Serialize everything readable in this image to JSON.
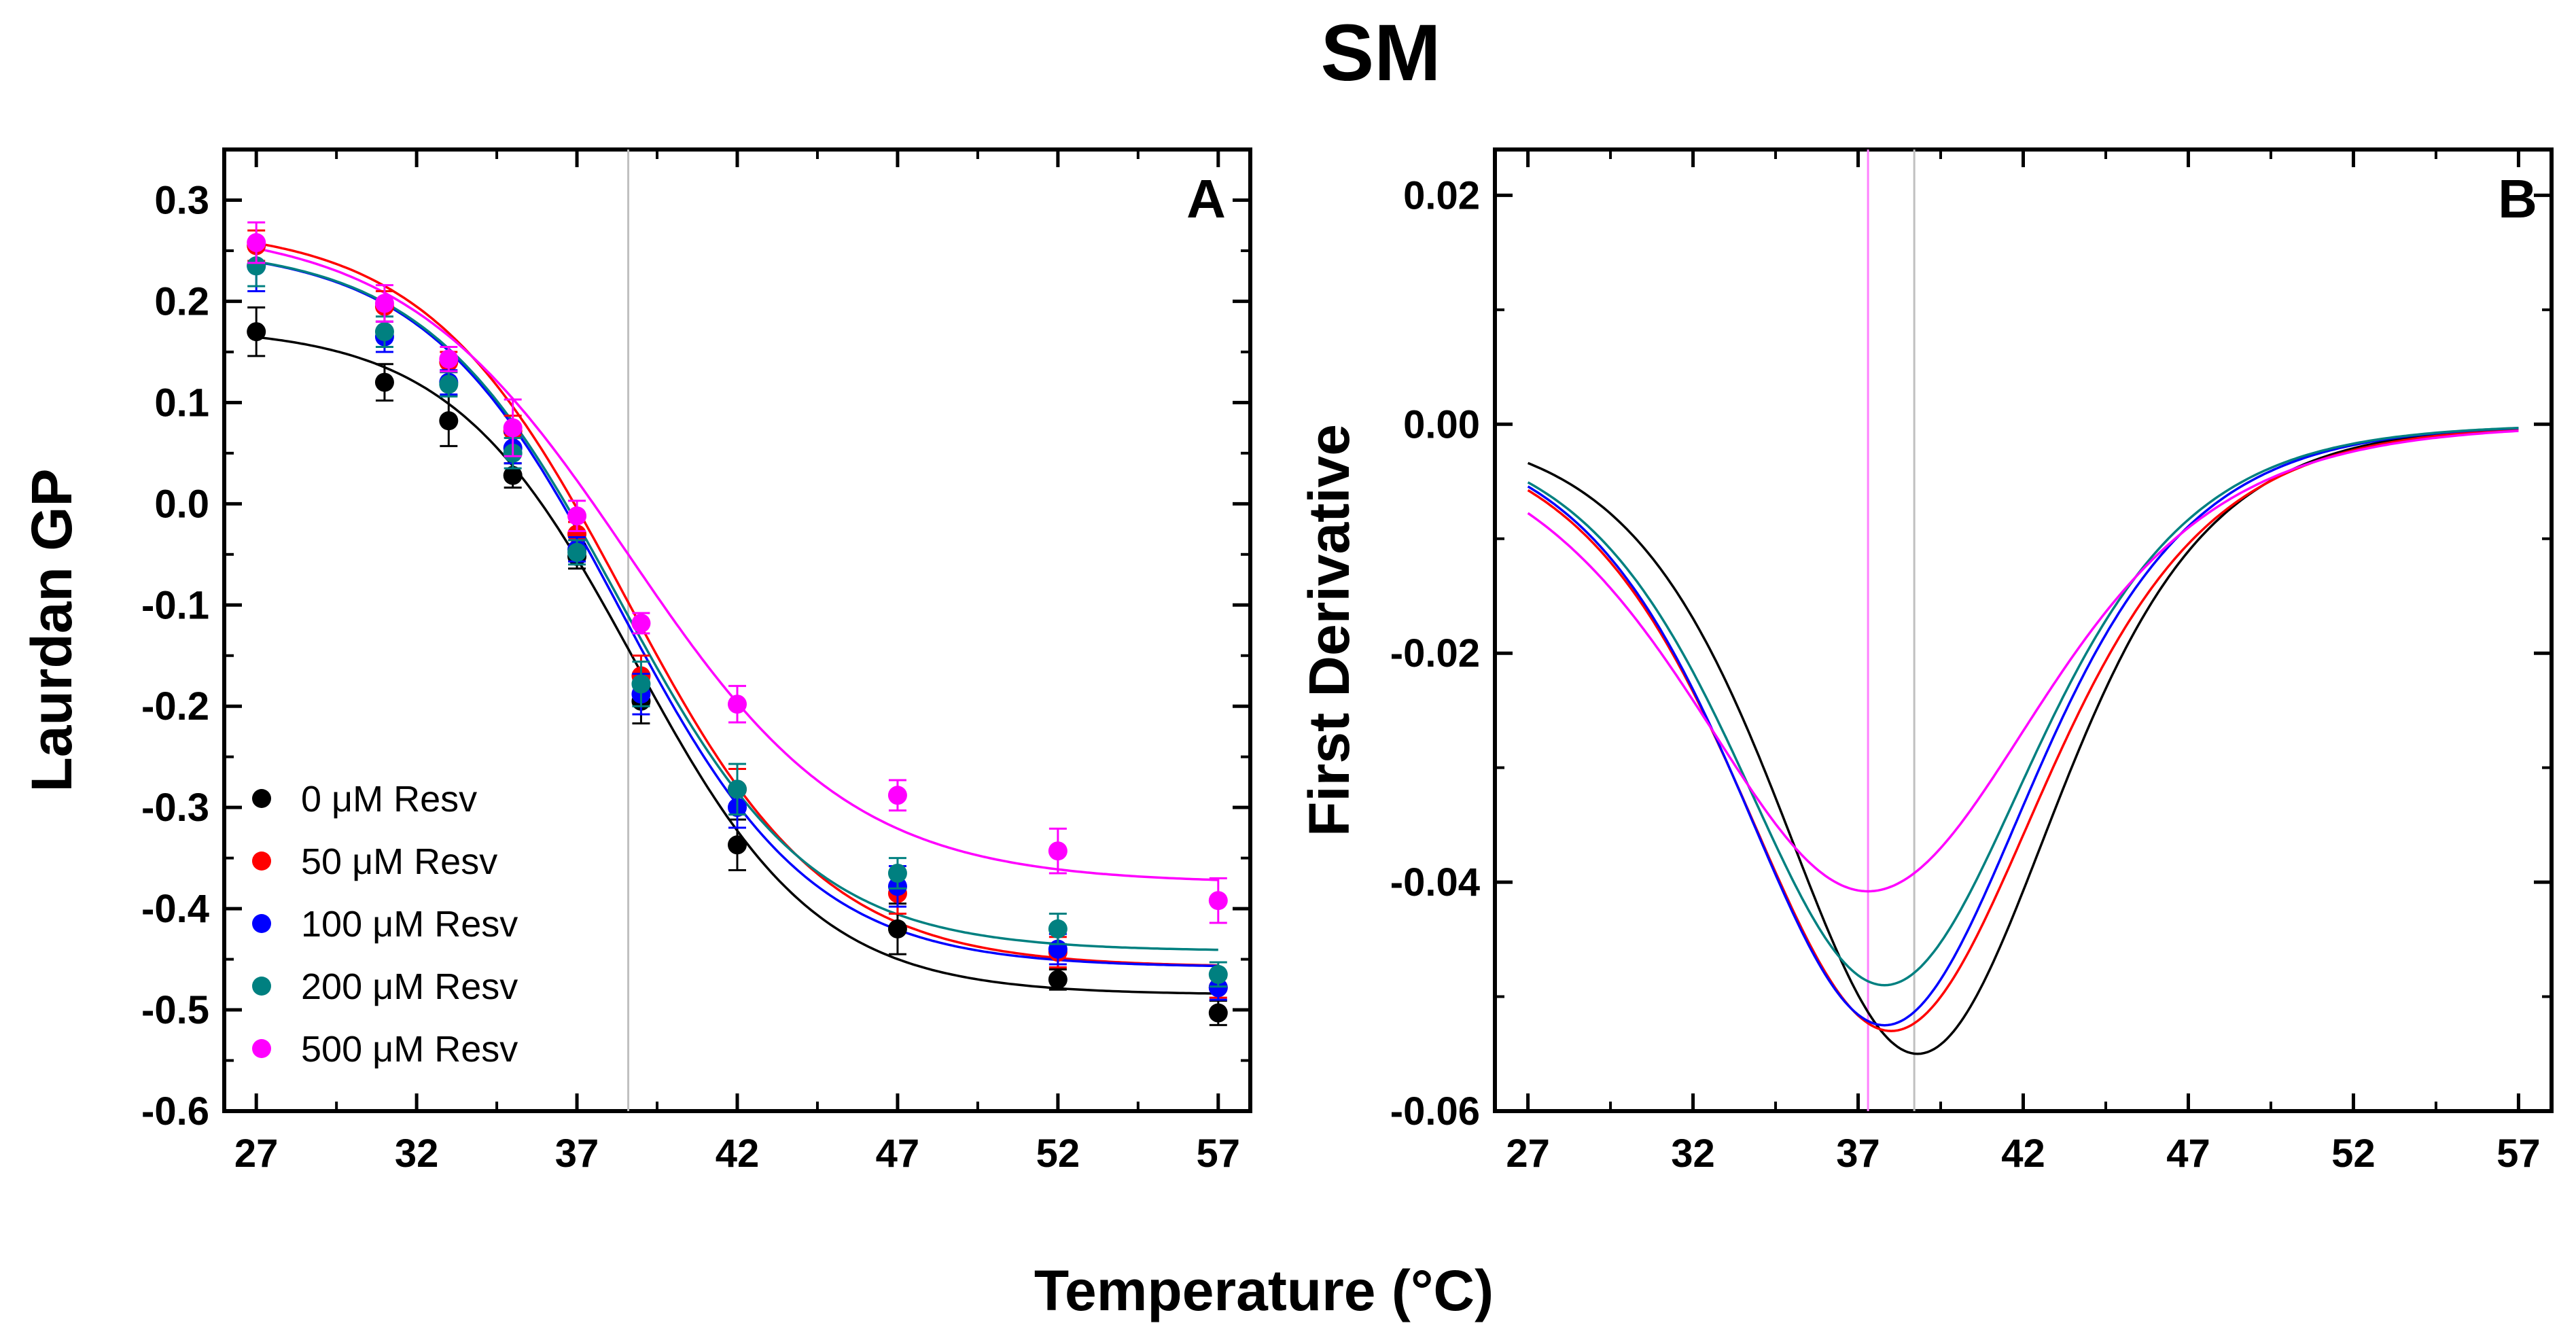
{
  "figure": {
    "title": "SM",
    "shared_xlabel": "Temperature (°C)"
  },
  "chart_data": [
    {
      "type": "scatter",
      "panel": "A",
      "ylabel": "Laurdan GP",
      "xlabel": "Temperature (°C)",
      "xlim": [
        26,
        58
      ],
      "ylim": [
        -0.6,
        0.35
      ],
      "xticks": [
        27,
        32,
        37,
        42,
        47,
        52,
        57
      ],
      "yticks": [
        -0.6,
        -0.5,
        -0.4,
        -0.3,
        -0.2,
        -0.1,
        0.0,
        0.1,
        0.2,
        0.3
      ],
      "ytick_labels": [
        "-0.6",
        "-0.5",
        "-0.4",
        "-0.3",
        "-0.2",
        "-0.1",
        "0.0",
        "0.1",
        "0.2",
        "0.3"
      ],
      "reference_line_x": 38.6,
      "legend_position": "bottom-left",
      "x": [
        27,
        31,
        33,
        35,
        37,
        39,
        42,
        47,
        52,
        57
      ],
      "series": [
        {
          "name": "0 μM Resv",
          "color": "#000000",
          "values": [
            0.17,
            0.12,
            0.082,
            0.028,
            -0.052,
            -0.195,
            -0.337,
            -0.42,
            -0.47,
            -0.503
          ],
          "errors": [
            0.024,
            0.018,
            0.025,
            0.012,
            0.012,
            0.022,
            0.025,
            0.025,
            0.01,
            0.012
          ],
          "fit": {
            "top": 0.175,
            "bottom": -0.485,
            "x0": 38.8,
            "dx": 2.85
          }
        },
        {
          "name": "50 μM Resv",
          "color": "#ff0000",
          "values": [
            0.255,
            0.195,
            0.14,
            0.072,
            -0.03,
            -0.17,
            -0.282,
            -0.385,
            -0.443,
            -0.478
          ],
          "errors": [
            0.015,
            0.015,
            0.01,
            0.015,
            0.012,
            0.02,
            0.02,
            0.02,
            0.015,
            0.01
          ],
          "fit": {
            "top": 0.275,
            "bottom": -0.458,
            "x0": 38.5,
            "dx": 3.1
          }
        },
        {
          "name": "100 μM Resv",
          "color": "#0000ff",
          "values": [
            0.235,
            0.165,
            0.12,
            0.055,
            -0.045,
            -0.188,
            -0.3,
            -0.378,
            -0.44,
            -0.478
          ],
          "errors": [
            0.025,
            0.015,
            0.012,
            0.015,
            0.012,
            0.02,
            0.02,
            0.02,
            0.015,
            0.012
          ],
          "fit": {
            "top": 0.255,
            "bottom": -0.458,
            "x0": 38.3,
            "dx": 3.0
          }
        },
        {
          "name": "200 μM Resv",
          "color": "#008080",
          "values": [
            0.235,
            0.17,
            0.118,
            0.05,
            -0.048,
            -0.178,
            -0.282,
            -0.365,
            -0.42,
            -0.465
          ],
          "errors": [
            0.02,
            0.015,
            0.012,
            0.015,
            0.012,
            0.022,
            0.025,
            0.015,
            0.015,
            0.012
          ],
          "fit": {
            "top": 0.255,
            "bottom": -0.442,
            "x0": 38.3,
            "dx": 3.0
          }
        },
        {
          "name": "500 μM Resv",
          "color": "#ff00ff",
          "values": [
            0.258,
            0.198,
            0.143,
            0.075,
            -0.012,
            -0.118,
            -0.198,
            -0.288,
            -0.343,
            -0.392
          ],
          "errors": [
            0.02,
            0.018,
            0.012,
            0.028,
            0.015,
            0.01,
            0.018,
            0.015,
            0.022,
            0.022
          ],
          "fit": {
            "top": 0.275,
            "bottom": -0.375,
            "x0": 38.6,
            "dx": 3.5
          }
        }
      ]
    },
    {
      "type": "line",
      "panel": "B",
      "ylabel": "First Derivative",
      "xlabel": "Temperature (°C)",
      "xlim": [
        26,
        58
      ],
      "ylim": [
        -0.06,
        0.024
      ],
      "xticks": [
        27,
        32,
        37,
        42,
        47,
        52,
        57
      ],
      "yticks": [
        -0.06,
        -0.04,
        -0.02,
        0.0,
        0.02
      ],
      "ytick_labels": [
        "-0.06",
        "-0.04",
        "-0.02",
        "0.00",
        "0.02"
      ],
      "reference_lines_x": [
        {
          "x": 37.3,
          "color": "#ff80ff"
        },
        {
          "x": 38.7,
          "color": "#c0c0c0"
        }
      ],
      "x_range": [
        27,
        57
      ],
      "series": [
        {
          "name": "0 μM Resv",
          "color": "#000000",
          "minimum": {
            "x": 38.8,
            "y": -0.055
          }
        },
        {
          "name": "50 μM Resv",
          "color": "#ff0000",
          "minimum": {
            "x": 38.0,
            "y": -0.053
          }
        },
        {
          "name": "100 μM Resv",
          "color": "#0000ff",
          "minimum": {
            "x": 37.8,
            "y": -0.0525
          }
        },
        {
          "name": "200 μM Resv",
          "color": "#008080",
          "minimum": {
            "x": 37.8,
            "y": -0.049
          }
        },
        {
          "name": "500 μM Resv",
          "color": "#ff00ff",
          "minimum": {
            "x": 37.3,
            "y": -0.0408
          }
        }
      ]
    }
  ]
}
